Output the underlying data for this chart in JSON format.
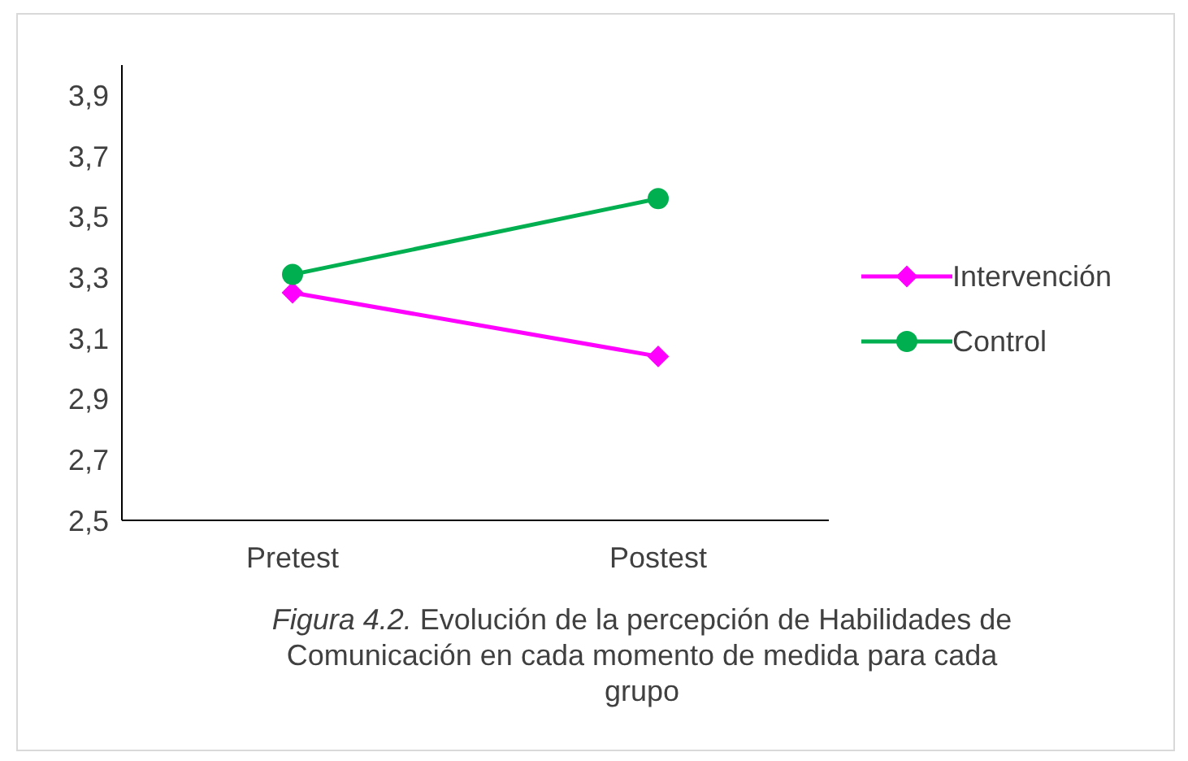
{
  "chart_data": {
    "type": "line",
    "categories": [
      "Pretest",
      "Postest"
    ],
    "series": [
      {
        "name": "Intervención",
        "color": "#ff00ff",
        "values": [
          3.25,
          3.04
        ],
        "marker": "diamond"
      },
      {
        "name": "Control",
        "color": "#00b050",
        "values": [
          3.31,
          3.56
        ],
        "marker": "circle"
      }
    ],
    "ylim": [
      2.5,
      4.0
    ],
    "yticks": [
      {
        "value": 2.5,
        "label": "2,5"
      },
      {
        "value": 2.7,
        "label": "2,7"
      },
      {
        "value": 2.9,
        "label": "2,9"
      },
      {
        "value": 3.1,
        "label": "3,1"
      },
      {
        "value": 3.3,
        "label": "3,3"
      },
      {
        "value": 3.5,
        "label": "3,5"
      },
      {
        "value": 3.7,
        "label": "3,7"
      },
      {
        "value": 3.9,
        "label": "3,9"
      }
    ],
    "grid": false,
    "legend": "right",
    "line_style": "solid",
    "annotations": [
      "Figura 4.2.",
      "Evolución de la percepción de Habilidades de Comunicación en cada momento de medida para cada grupo"
    ]
  }
}
